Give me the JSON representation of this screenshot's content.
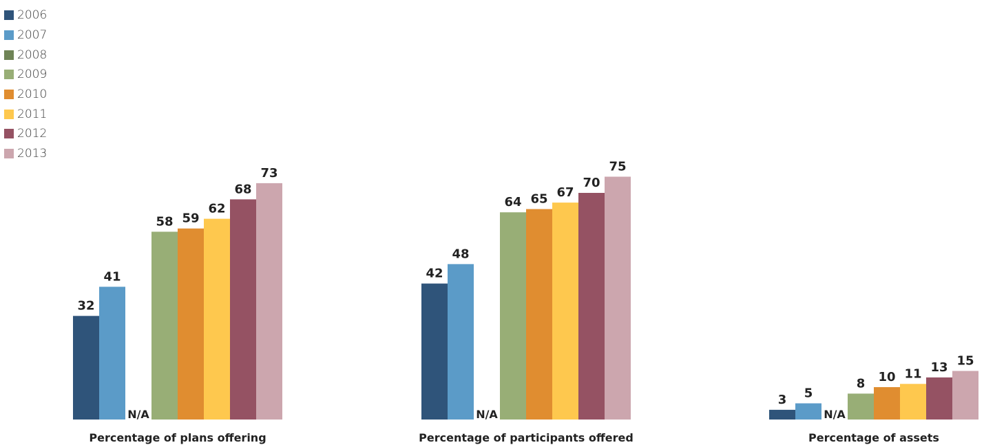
{
  "chart_data": {
    "type": "bar",
    "categories": [
      "Percentage of plans offering",
      "Percentage of participants offered",
      "Percentage of assets"
    ],
    "series": [
      {
        "name": "2006",
        "values": [
          32,
          42,
          3
        ],
        "labels": [
          "32",
          "42",
          "3"
        ],
        "color": "#2f547a"
      },
      {
        "name": "2007",
        "values": [
          41,
          48,
          5
        ],
        "labels": [
          "41",
          "48",
          "5"
        ],
        "color": "#5b9bc8"
      },
      {
        "name": "2008",
        "values": [
          null,
          null,
          null
        ],
        "labels": [
          "N/A",
          "N/A",
          "N/A"
        ],
        "color": "#6f8456"
      },
      {
        "name": "2009",
        "values": [
          58,
          64,
          8
        ],
        "labels": [
          "58",
          "64",
          "8"
        ],
        "color": "#98ae76"
      },
      {
        "name": "2010",
        "values": [
          59,
          65,
          10
        ],
        "labels": [
          "59",
          "65",
          "10"
        ],
        "color": "#e08d30"
      },
      {
        "name": "2011",
        "values": [
          62,
          67,
          11
        ],
        "labels": [
          "62",
          "67",
          "11"
        ],
        "color": "#fec84e"
      },
      {
        "name": "2012",
        "values": [
          68,
          70,
          13
        ],
        "labels": [
          "68",
          "70",
          "13"
        ],
        "color": "#955263"
      },
      {
        "name": "2013",
        "values": [
          73,
          75,
          15
        ],
        "labels": [
          "73",
          "75",
          "15"
        ],
        "color": "#cca6ae"
      }
    ],
    "legend_position": "top-left",
    "grid": false,
    "ylim": [
      0,
      75
    ]
  }
}
